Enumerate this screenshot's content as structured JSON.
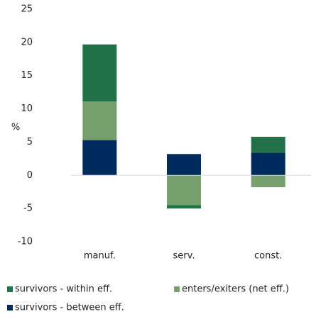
{
  "chart_data": {
    "type": "stacked-bar",
    "y_label": "%",
    "categories": [
      "manuf.",
      "serv.",
      "const."
    ],
    "series": [
      {
        "name": "survivors - between eff.",
        "color": "#002b5f",
        "values": [
          5.3,
          3.2,
          3.4
        ]
      },
      {
        "name": "enters/exiters (net eff.)",
        "color": "#77a06c",
        "values": [
          5.8,
          -4.5,
          -1.8
        ]
      },
      {
        "name": "survivors - within eff.",
        "color": "#217249",
        "values": [
          8.6,
          -0.5,
          2.4
        ]
      }
    ],
    "ylim": [
      -10,
      25
    ],
    "yticks": [
      -10,
      -5,
      0,
      5,
      10,
      15,
      20,
      25
    ],
    "grid": false
  }
}
